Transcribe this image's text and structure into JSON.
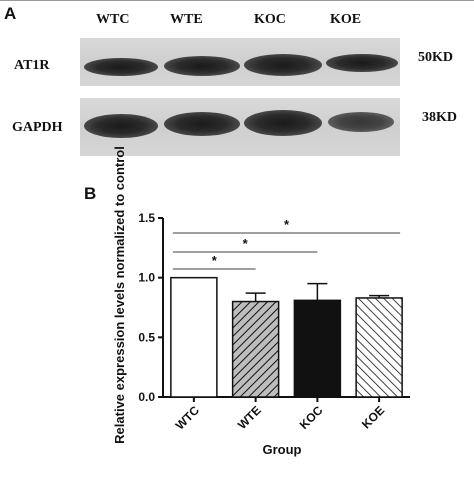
{
  "panel_a": {
    "letter": "A",
    "lanes": [
      "WTC",
      "WTE",
      "KOC",
      "KOE"
    ],
    "rows": [
      {
        "label": "AT1R",
        "size": "50KD"
      },
      {
        "label": "GAPDH",
        "size": "38KD"
      }
    ]
  },
  "panel_b": {
    "letter": "B"
  },
  "chart_data": {
    "type": "bar",
    "categories": [
      "WTC",
      "WTE",
      "KOC",
      "KOE"
    ],
    "values": [
      1.0,
      0.8,
      0.81,
      0.83
    ],
    "errors": [
      0.0,
      0.07,
      0.14,
      0.02
    ],
    "fills": [
      "white",
      "diagonal-hatch-gray",
      "black",
      "diagonal-hatch-white"
    ],
    "ylabel": "Relative expression levels normalized to control",
    "xlabel": "Group",
    "ylim": [
      0.0,
      1.5
    ],
    "yticks": [
      "0.0",
      "0.5",
      "1.0",
      "1.5"
    ],
    "significance": [
      {
        "from": "WTC",
        "to": "WTE",
        "label": "*"
      },
      {
        "from": "WTC",
        "to": "KOC",
        "label": "*"
      },
      {
        "from": "WTC",
        "to": "KOE",
        "label": "*"
      }
    ],
    "grid": false
  }
}
